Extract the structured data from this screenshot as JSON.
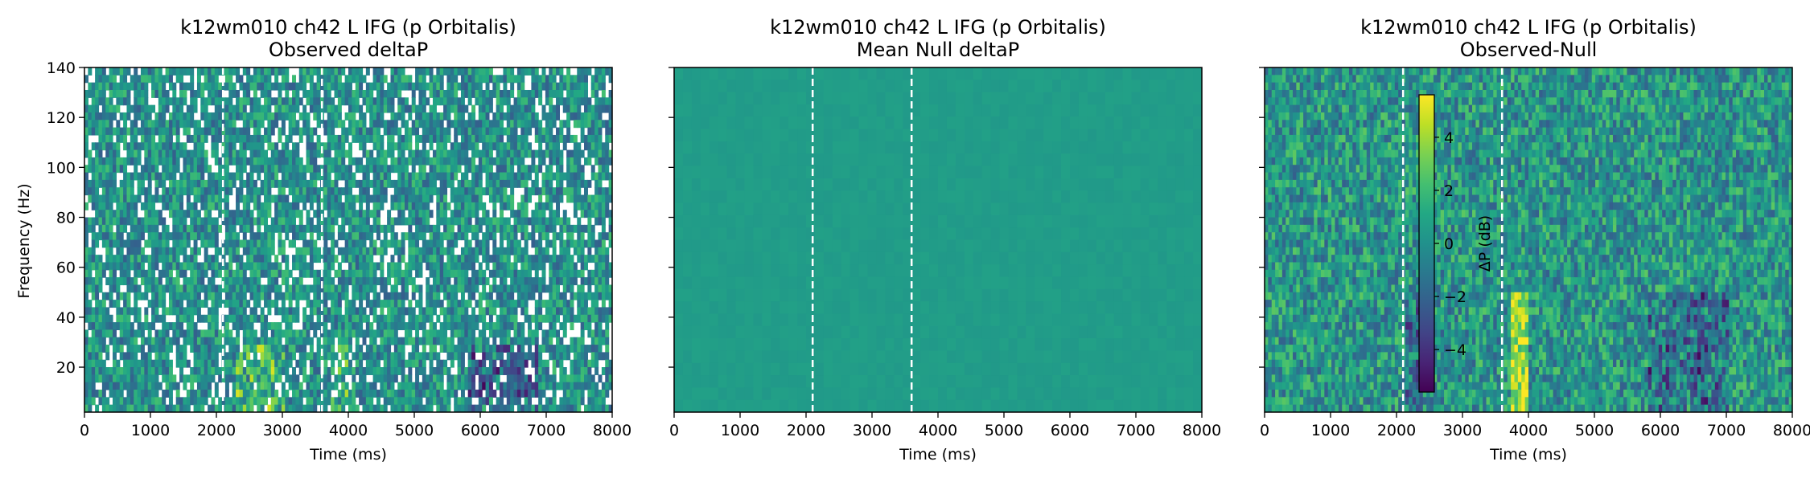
{
  "chart_data": [
    {
      "type": "heatmap",
      "title": "k12wm010 ch42 L IFG (p Orbitalis)",
      "subtitle": "Observed deltaP",
      "xlabel": "Time (ms)",
      "ylabel": "Frequency (Hz)",
      "xlim": [
        0,
        8000
      ],
      "ylim": [
        2,
        140
      ],
      "xticks": [
        0,
        1000,
        2000,
        3000,
        4000,
        5000,
        6000,
        7000,
        8000
      ],
      "yticks": [
        20,
        40,
        60,
        80,
        100,
        120,
        140
      ],
      "show_ytick_labels": true,
      "event_lines": [
        2100,
        3600
      ],
      "masked_nonsignificant": true,
      "colormap": "viridis"
    },
    {
      "type": "heatmap",
      "title": "k12wm010 ch42 L IFG (p Orbitalis)",
      "subtitle": "Mean Null deltaP",
      "xlabel": "Time (ms)",
      "ylabel": "",
      "xlim": [
        0,
        8000
      ],
      "ylim": [
        2,
        140
      ],
      "xticks": [
        0,
        1000,
        2000,
        3000,
        4000,
        5000,
        6000,
        7000,
        8000
      ],
      "yticks": [
        20,
        40,
        60,
        80,
        100,
        120,
        140
      ],
      "show_ytick_labels": false,
      "event_lines": [
        2100,
        3600
      ],
      "masked_nonsignificant": false,
      "colormap": "viridis"
    },
    {
      "type": "heatmap",
      "title": "k12wm010 ch42 L IFG (p Orbitalis)",
      "subtitle": "Observed-Null",
      "xlabel": "Time (ms)",
      "ylabel": "",
      "xlim": [
        0,
        8000
      ],
      "ylim": [
        2,
        140
      ],
      "xticks": [
        0,
        1000,
        2000,
        3000,
        4000,
        5000,
        6000,
        7000,
        8000
      ],
      "yticks": [
        20,
        40,
        60,
        80,
        100,
        120,
        140
      ],
      "show_ytick_labels": false,
      "event_lines": [
        2100,
        3600
      ],
      "masked_nonsignificant": false,
      "colormap": "viridis",
      "colorbar": {
        "label": "ΔP (dB)",
        "range": [
          -5.6,
          5.6
        ],
        "ticks": [
          -4,
          -2,
          0,
          2,
          4
        ],
        "tick_labels": [
          "−4",
          "−2",
          "0",
          "2",
          "4"
        ]
      }
    }
  ]
}
